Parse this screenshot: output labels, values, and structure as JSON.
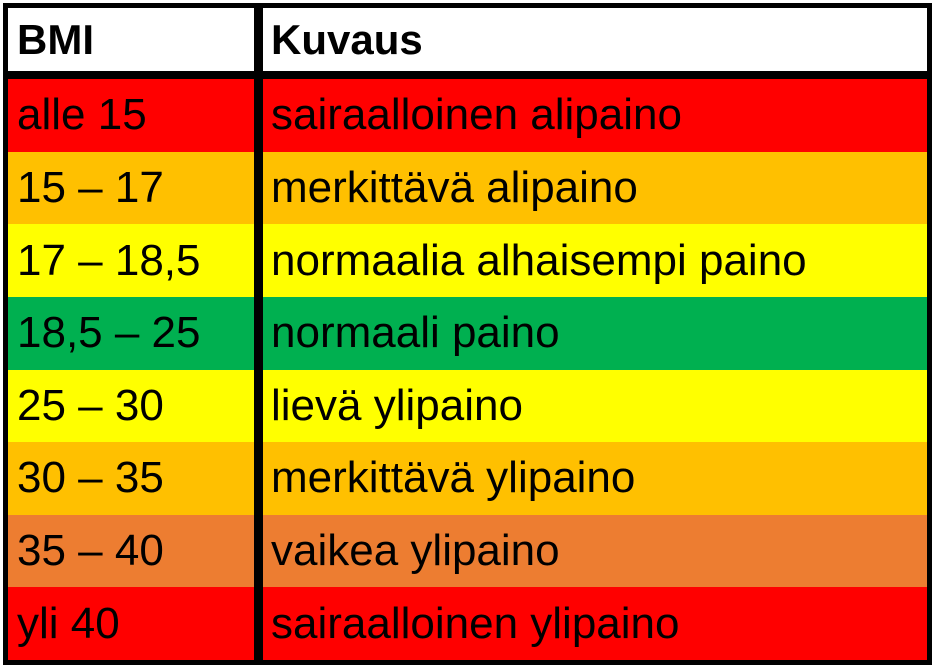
{
  "table": {
    "headers": {
      "bmi": "BMI",
      "description": "Kuvaus"
    },
    "rows": [
      {
        "range": "alle 15",
        "description": "sairaalloinen alipaino",
        "color": "#ff0000"
      },
      {
        "range": "15  – 17",
        "description": "merkittävä alipaino",
        "color": "#ffc000"
      },
      {
        "range": "17  – 18,5",
        "description": "normaalia alhaisempi paino",
        "color": "#ffff00"
      },
      {
        "range": "18,5 – 25",
        "description": "normaali paino",
        "color": "#00b050"
      },
      {
        "range": "25  – 30",
        "description": "lievä ylipaino",
        "color": "#ffff00"
      },
      {
        "range": "30  – 35",
        "description": "merkittävä ylipaino",
        "color": "#ffc000"
      },
      {
        "range": "35  – 40",
        "description": "vaikea ylipaino",
        "color": "#ed7d31"
      },
      {
        "range": "yli 40",
        "description": "sairaalloinen ylipaino",
        "color": "#ff0000"
      }
    ]
  }
}
